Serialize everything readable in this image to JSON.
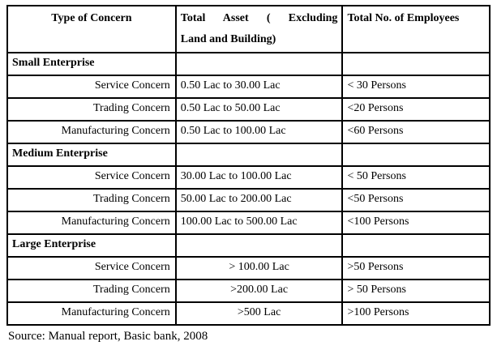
{
  "table": {
    "columns": [
      {
        "label": "Type of Concern"
      },
      {
        "label_line1": "Total Asset ( Excluding",
        "label_line2": "Land and Building)"
      },
      {
        "label": "Total No. of Employees"
      }
    ],
    "sections": [
      {
        "name": "Small Enterprise",
        "rows": [
          {
            "concern": "Service Concern",
            "asset": "0.50 Lac to 30.00 Lac",
            "employees": "< 30 Persons"
          },
          {
            "concern": "Trading Concern",
            "asset": "0.50 Lac to 50.00 Lac",
            "employees": "<20 Persons"
          },
          {
            "concern": "Manufacturing Concern",
            "asset": "0.50 Lac to 100.00 Lac",
            "employees": "<60 Persons"
          }
        ]
      },
      {
        "name": "Medium Enterprise",
        "rows": [
          {
            "concern": "Service Concern",
            "asset": "30.00 Lac to 100.00 Lac",
            "employees": "< 50 Persons"
          },
          {
            "concern": "Trading Concern",
            "asset": "50.00 Lac to 200.00 Lac",
            "employees": "<50 Persons"
          },
          {
            "concern": "Manufacturing Concern",
            "asset": "100.00 Lac to 500.00 Lac",
            "employees": "<100 Persons"
          }
        ]
      },
      {
        "name": "Large Enterprise",
        "rows": [
          {
            "concern": "Service Concern",
            "asset": "> 100.00 Lac",
            "employees": ">50 Persons"
          },
          {
            "concern": "Trading Concern",
            "asset": ">200.00 Lac",
            "employees": "> 50 Persons"
          },
          {
            "concern": "Manufacturing Concern",
            "asset": ">500 Lac",
            "employees": ">100 Persons"
          }
        ]
      }
    ]
  },
  "source_note": "Source: Manual report, Basic bank, 2008",
  "colors": {
    "border": "#000000",
    "text": "#000000",
    "background": "#ffffff"
  }
}
